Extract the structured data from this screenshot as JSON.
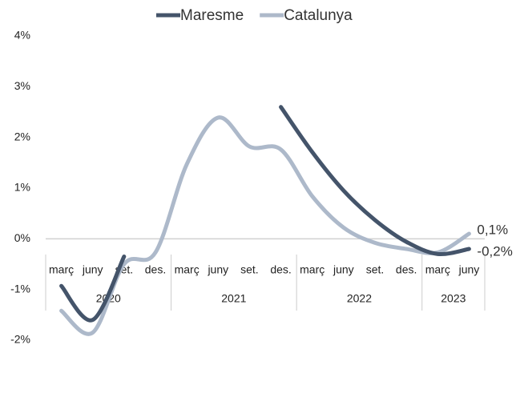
{
  "chart_data": {
    "type": "line",
    "year_groups": [
      {
        "label": "2020",
        "categories": [
          "març",
          "juny",
          "set.",
          "des."
        ]
      },
      {
        "label": "2021",
        "categories": [
          "març",
          "juny",
          "set.",
          "des."
        ]
      },
      {
        "label": "2022",
        "categories": [
          "març",
          "juny",
          "set.",
          "des."
        ]
      },
      {
        "label": "2023",
        "categories": [
          "març",
          "juny"
        ]
      }
    ],
    "series": [
      {
        "name": "Maresme",
        "color": "#44546a",
        "values": [
          -0.93,
          -1.6,
          -0.35,
          null,
          null,
          null,
          null,
          2.6,
          1.71,
          0.95,
          0.37,
          -0.06,
          -0.3,
          -0.2
        ],
        "value_labels": [
          null,
          null,
          null,
          null,
          null,
          null,
          null,
          null,
          null,
          null,
          null,
          null,
          null,
          "-0,2%"
        ]
      },
      {
        "name": "Catalunya",
        "color": "#adb9ca",
        "values": [
          -1.42,
          -1.85,
          -0.5,
          -0.27,
          1.47,
          2.39,
          1.82,
          1.76,
          0.84,
          0.22,
          -0.08,
          -0.2,
          -0.27,
          0.1
        ],
        "value_labels": [
          null,
          null,
          null,
          null,
          null,
          null,
          null,
          null,
          null,
          null,
          null,
          null,
          null,
          "0,1%"
        ]
      }
    ],
    "ylim": [
      -2,
      4
    ],
    "yticks": [
      {
        "value": -2,
        "label": "-2%"
      },
      {
        "value": -1,
        "label": "-1%"
      },
      {
        "value": 0,
        "label": "0%"
      },
      {
        "value": 1,
        "label": "1%"
      },
      {
        "value": 2,
        "label": "2%"
      },
      {
        "value": 3,
        "label": "3%"
      },
      {
        "value": 4,
        "label": "4%"
      }
    ],
    "legend": "top"
  }
}
